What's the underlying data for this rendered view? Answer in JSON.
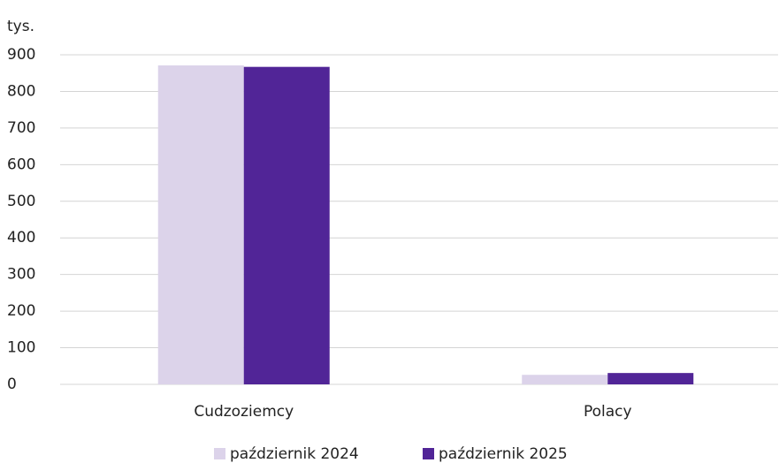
{
  "chart_data": {
    "type": "bar",
    "y_label": "tys.",
    "categories": [
      "Cudzoziemcy",
      "Polacy"
    ],
    "series": [
      {
        "name": "październik 2024",
        "color": "#dcd3ea",
        "values": [
          871,
          26
        ]
      },
      {
        "name": "październik 2025",
        "color": "#512597",
        "values": [
          867,
          31
        ]
      }
    ],
    "ylim": [
      0,
      900
    ],
    "yticks": [
      0,
      100,
      200,
      300,
      400,
      500,
      600,
      700,
      800,
      900
    ],
    "grid": true
  }
}
